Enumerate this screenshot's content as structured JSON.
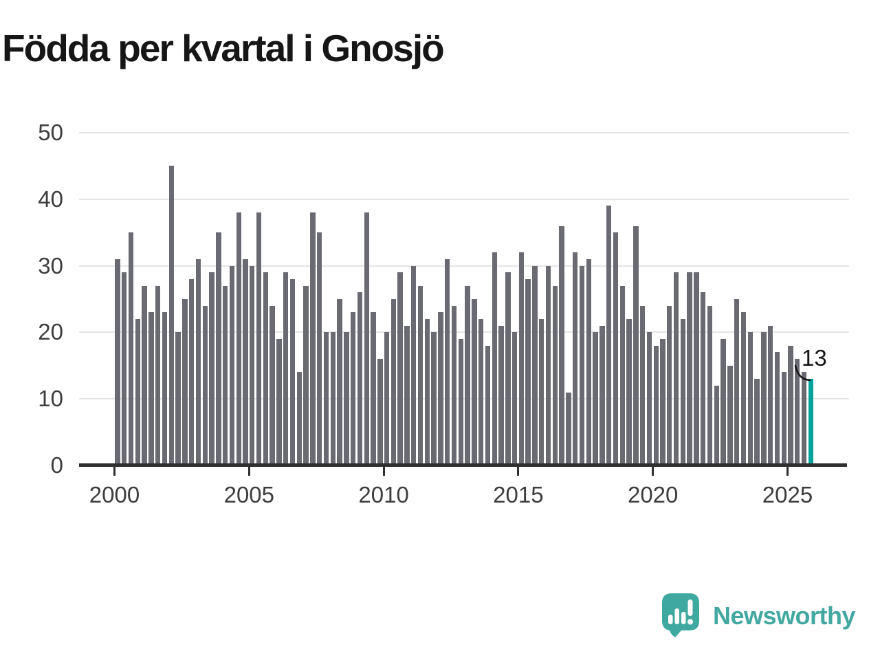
{
  "title": "Födda per kvartal i Gnosjö",
  "annotation": {
    "text": "13"
  },
  "branding": {
    "name": "Newsworthy",
    "color": "#42a8a1",
    "icon": "newsworthy-speech-bubble-chart-icon"
  },
  "chart_data": {
    "type": "bar",
    "title": "Födda per kvartal i Gnosjö",
    "xlabel": "",
    "ylabel": "",
    "ylim": [
      0,
      50
    ],
    "y_ticks": [
      0,
      10,
      20,
      30,
      40,
      50
    ],
    "x_tick_labels": [
      "2000",
      "2005",
      "2010",
      "2015",
      "2020",
      "2025"
    ],
    "grid": "horizontal",
    "legend": "none",
    "bar_unit": "quarter",
    "series": [
      {
        "year": 2000,
        "values": [
          31,
          29,
          35,
          22
        ]
      },
      {
        "year": 2001,
        "values": [
          27,
          23,
          27,
          23
        ]
      },
      {
        "year": 2002,
        "values": [
          45,
          20,
          25,
          28
        ]
      },
      {
        "year": 2003,
        "values": [
          31,
          24,
          29,
          35
        ]
      },
      {
        "year": 2004,
        "values": [
          27,
          30,
          38,
          31
        ]
      },
      {
        "year": 2005,
        "values": [
          30,
          38,
          29,
          24
        ]
      },
      {
        "year": 2006,
        "values": [
          19,
          29,
          28,
          14
        ]
      },
      {
        "year": 2007,
        "values": [
          27,
          38,
          35,
          20
        ]
      },
      {
        "year": 2008,
        "values": [
          20,
          25,
          20,
          23
        ]
      },
      {
        "year": 2009,
        "values": [
          26,
          38,
          23,
          16
        ]
      },
      {
        "year": 2010,
        "values": [
          20,
          25,
          29,
          21
        ]
      },
      {
        "year": 2011,
        "values": [
          30,
          27,
          22,
          20
        ]
      },
      {
        "year": 2012,
        "values": [
          23,
          31,
          24,
          19
        ]
      },
      {
        "year": 2013,
        "values": [
          27,
          25,
          22,
          18
        ]
      },
      {
        "year": 2014,
        "values": [
          32,
          21,
          29,
          20
        ]
      },
      {
        "year": 2015,
        "values": [
          32,
          28,
          30,
          22
        ]
      },
      {
        "year": 2016,
        "values": [
          30,
          27,
          36,
          11
        ]
      },
      {
        "year": 2017,
        "values": [
          32,
          30,
          31,
          20
        ]
      },
      {
        "year": 2018,
        "values": [
          21,
          39,
          35,
          27
        ]
      },
      {
        "year": 2019,
        "values": [
          22,
          36,
          24,
          20
        ]
      },
      {
        "year": 2020,
        "values": [
          18,
          19,
          24,
          29
        ]
      },
      {
        "year": 2021,
        "values": [
          22,
          29,
          29,
          26
        ]
      },
      {
        "year": 2022,
        "values": [
          24,
          12,
          19,
          15
        ]
      },
      {
        "year": 2023,
        "values": [
          25,
          23,
          20,
          13
        ]
      },
      {
        "year": 2024,
        "values": [
          20,
          21,
          17,
          14
        ]
      },
      {
        "year": 2025,
        "values": [
          18,
          16,
          14,
          13
        ]
      }
    ],
    "highlight": {
      "position": "last-bar",
      "label": "13"
    },
    "colors": {
      "bar": "#6a6a72",
      "highlight": "#00a39c",
      "grid": "#e4e4e4",
      "axis": "#2f2f2f",
      "tick_text": "#3d3d3d",
      "title_text": "#161616"
    }
  }
}
